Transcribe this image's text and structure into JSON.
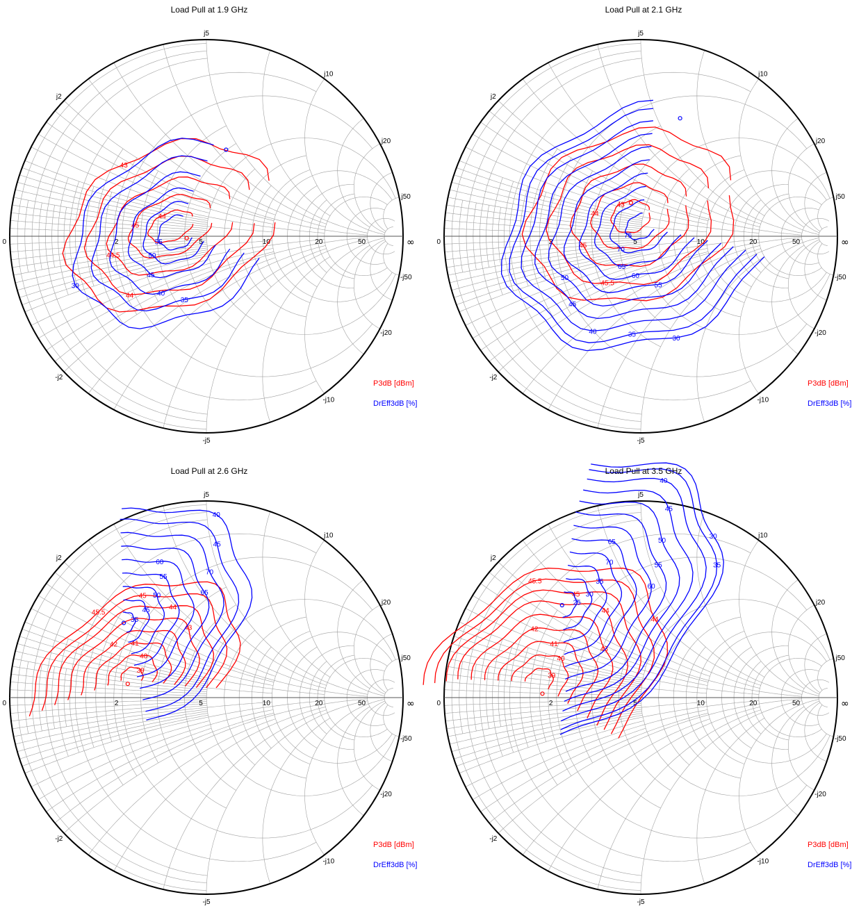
{
  "colors": {
    "p3db": "#ff0000",
    "dreff": "#0000ff",
    "grid": "#a0a0a0",
    "axis": "#555555"
  },
  "legend": {
    "p3db": "P3dB [dBm]",
    "dreff": "DrEff3dB [%]"
  },
  "smith_labels": {
    "real": [
      "0",
      "2",
      "5",
      "10",
      "20",
      "50",
      "∞"
    ],
    "imag_pos": [
      "j2",
      "j5",
      "j10",
      "j20",
      "j50"
    ],
    "imag_neg": [
      "-j2",
      "-j5",
      "-j10",
      "-j20",
      "-j50"
    ]
  },
  "chart_data": [
    {
      "type": "smith-contour",
      "title": "Load Pull at 1.9 GHz",
      "series": [
        {
          "name": "P3dB [dBm]",
          "contour_labels": [
            "44",
            "45",
            "44.5",
            "44",
            "43",
            "45",
            "44"
          ]
        },
        {
          "name": "DrEff3dB [%]",
          "contour_labels": [
            "55",
            "50",
            "45",
            "40",
            "35",
            "30"
          ]
        }
      ]
    },
    {
      "type": "smith-contour",
      "title": "Load Pull at 2.1 GHz",
      "series": [
        {
          "name": "P3dB [dBm]",
          "contour_labels": [
            "43",
            "44",
            "45",
            "45.5"
          ]
        },
        {
          "name": "DrEff3dB [%]",
          "contour_labels": [
            "75",
            "70",
            "65",
            "60",
            "55",
            "50",
            "45",
            "40",
            "35",
            "30"
          ]
        }
      ]
    },
    {
      "type": "smith-contour",
      "title": "Load Pull at 2.6 GHz",
      "series": [
        {
          "name": "P3dB [dBm]",
          "contour_labels": [
            "39",
            "40",
            "41",
            "42",
            "43",
            "44",
            "45",
            "45.5"
          ]
        },
        {
          "name": "DrEff3dB [%]",
          "contour_labels": [
            "35",
            "45",
            "50",
            "55",
            "60",
            "65",
            "70",
            "45",
            "40"
          ]
        }
      ]
    },
    {
      "type": "smith-contour",
      "title": "Load Pull at 3.5 GHz",
      "series": [
        {
          "name": "P3dB [dBm]",
          "contour_labels": [
            "39",
            "40",
            "41",
            "42",
            "43",
            "44",
            "45",
            "45.5",
            "44"
          ]
        },
        {
          "name": "DrEff3dB [%]",
          "contour_labels": [
            "25",
            "30",
            "35",
            "70",
            "65",
            "60",
            "55",
            "50",
            "45",
            "40",
            "35",
            "30"
          ]
        }
      ]
    }
  ]
}
